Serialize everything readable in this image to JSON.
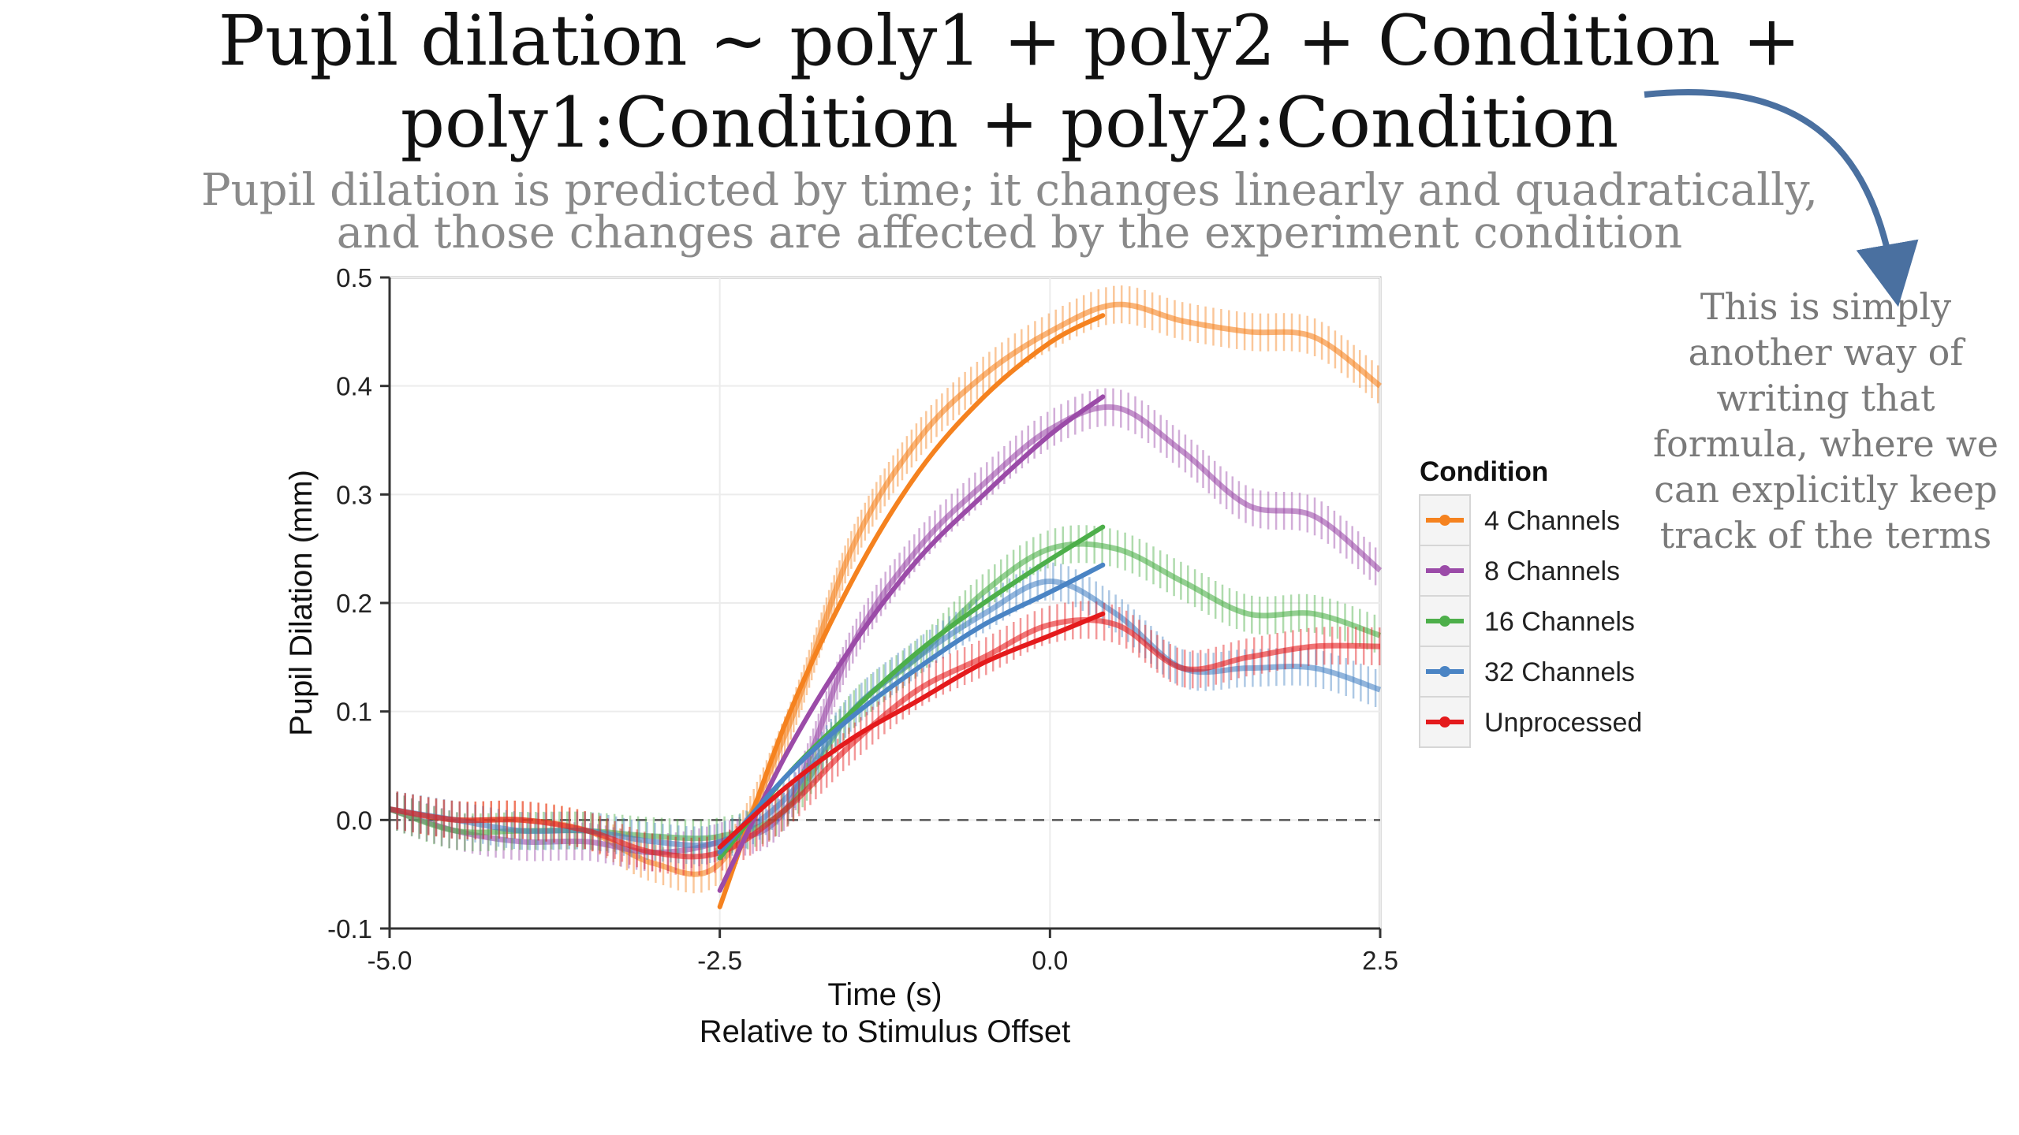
{
  "header": {
    "title_line1": "Pupil dilation ~ poly1 + poly2 + Condition +",
    "title_line2": "poly1:Condition + poly2:Condition",
    "subtitle_line1": "Pupil dilation is predicted by time; it changes linearly and quadratically,",
    "subtitle_line2": "and those changes are affected by the experiment condition"
  },
  "annotation": {
    "lines": [
      "This is simply",
      "another way of",
      "writing that",
      "formula, where we",
      "can explicitly keep",
      "track of the terms"
    ],
    "arrow_color": "#4a70a0"
  },
  "chart_data": {
    "type": "line",
    "xlabel": "Time (s)",
    "xlabel_sub": "Relative to Stimulus Offset",
    "ylabel": "Pupil Dilation (mm)",
    "xlim": [
      -5.0,
      2.5
    ],
    "ylim": [
      -0.1,
      0.5
    ],
    "xticks": [
      -5.0,
      -2.5,
      0.0,
      2.5
    ],
    "xtick_labels": [
      "-5.0",
      "-2.5",
      "0.0",
      "2.5"
    ],
    "yticks": [
      -0.1,
      0.0,
      0.1,
      0.2,
      0.3,
      0.4,
      0.5
    ],
    "ytick_labels": [
      "-0.1",
      "0.0",
      "0.1",
      "0.2",
      "0.3",
      "0.4",
      "0.5"
    ],
    "reference_line": {
      "y": 0.0,
      "style": "dashed"
    },
    "grid": true,
    "legend": {
      "title": "Condition",
      "placement": "right"
    },
    "series": [
      {
        "name": "4 Channels",
        "color": "#f5821f",
        "observed": [
          [
            -5.0,
            0.01
          ],
          [
            -4.5,
            0.0
          ],
          [
            -4.0,
            0.0
          ],
          [
            -3.5,
            -0.01
          ],
          [
            -3.0,
            -0.04
          ],
          [
            -2.5,
            -0.04
          ],
          [
            -2.0,
            0.08
          ],
          [
            -1.5,
            0.25
          ],
          [
            -1.0,
            0.35
          ],
          [
            -0.5,
            0.41
          ],
          [
            0.0,
            0.45
          ],
          [
            0.5,
            0.475
          ],
          [
            1.0,
            0.46
          ],
          [
            1.5,
            0.45
          ],
          [
            2.0,
            0.445
          ],
          [
            2.5,
            0.4
          ]
        ],
        "fit": [
          [
            -2.5,
            -0.08
          ],
          [
            -2.0,
            0.09
          ],
          [
            -1.5,
            0.22
          ],
          [
            -1.0,
            0.32
          ],
          [
            -0.5,
            0.39
          ],
          [
            0.0,
            0.44
          ],
          [
            0.4,
            0.465
          ]
        ]
      },
      {
        "name": "8 Channels",
        "color": "#9b4ba8",
        "observed": [
          [
            -5.0,
            0.01
          ],
          [
            -4.5,
            -0.01
          ],
          [
            -4.0,
            -0.02
          ],
          [
            -3.5,
            -0.02
          ],
          [
            -3.0,
            -0.03
          ],
          [
            -2.5,
            -0.02
          ],
          [
            -2.0,
            0.01
          ],
          [
            -1.5,
            0.16
          ],
          [
            -1.0,
            0.25
          ],
          [
            -0.5,
            0.31
          ],
          [
            0.0,
            0.36
          ],
          [
            0.5,
            0.38
          ],
          [
            1.0,
            0.34
          ],
          [
            1.5,
            0.29
          ],
          [
            2.0,
            0.28
          ],
          [
            2.5,
            0.23
          ]
        ],
        "fit": [
          [
            -2.5,
            -0.065
          ],
          [
            -2.0,
            0.06
          ],
          [
            -1.5,
            0.16
          ],
          [
            -1.0,
            0.24
          ],
          [
            -0.5,
            0.3
          ],
          [
            0.0,
            0.355
          ],
          [
            0.4,
            0.39
          ]
        ]
      },
      {
        "name": "16 Channels",
        "color": "#4daf4a",
        "observed": [
          [
            -5.0,
            0.01
          ],
          [
            -4.5,
            -0.01
          ],
          [
            -4.0,
            -0.01
          ],
          [
            -3.5,
            -0.01
          ],
          [
            -3.0,
            -0.015
          ],
          [
            -2.5,
            -0.015
          ],
          [
            -2.0,
            0.01
          ],
          [
            -1.5,
            0.1
          ],
          [
            -1.0,
            0.15
          ],
          [
            -0.5,
            0.21
          ],
          [
            0.0,
            0.25
          ],
          [
            0.5,
            0.25
          ],
          [
            1.0,
            0.22
          ],
          [
            1.5,
            0.19
          ],
          [
            2.0,
            0.19
          ],
          [
            2.5,
            0.17
          ]
        ],
        "fit": [
          [
            -2.5,
            -0.035
          ],
          [
            -2.0,
            0.04
          ],
          [
            -1.5,
            0.1
          ],
          [
            -1.0,
            0.155
          ],
          [
            -0.5,
            0.2
          ],
          [
            0.0,
            0.24
          ],
          [
            0.4,
            0.27
          ]
        ]
      },
      {
        "name": "32 Channels",
        "color": "#4a84c4",
        "observed": [
          [
            -5.0,
            0.01
          ],
          [
            -4.5,
            0.0
          ],
          [
            -4.0,
            -0.01
          ],
          [
            -3.5,
            -0.01
          ],
          [
            -3.0,
            -0.02
          ],
          [
            -2.5,
            -0.02
          ],
          [
            -2.0,
            0.02
          ],
          [
            -1.5,
            0.1
          ],
          [
            -1.0,
            0.15
          ],
          [
            -0.5,
            0.19
          ],
          [
            0.0,
            0.22
          ],
          [
            0.5,
            0.19
          ],
          [
            1.0,
            0.14
          ],
          [
            1.5,
            0.14
          ],
          [
            2.0,
            0.14
          ],
          [
            2.5,
            0.12
          ]
        ],
        "fit": [
          [
            -2.5,
            -0.03
          ],
          [
            -2.0,
            0.04
          ],
          [
            -1.5,
            0.095
          ],
          [
            -1.0,
            0.14
          ],
          [
            -0.5,
            0.18
          ],
          [
            0.0,
            0.21
          ],
          [
            0.4,
            0.235
          ]
        ]
      },
      {
        "name": "Unprocessed",
        "color": "#e41a1c",
        "observed": [
          [
            -5.0,
            0.01
          ],
          [
            -4.5,
            0.0
          ],
          [
            -4.0,
            0.0
          ],
          [
            -3.5,
            -0.01
          ],
          [
            -3.0,
            -0.03
          ],
          [
            -2.5,
            -0.03
          ],
          [
            -2.0,
            0.01
          ],
          [
            -1.5,
            0.07
          ],
          [
            -1.0,
            0.12
          ],
          [
            -0.5,
            0.15
          ],
          [
            0.0,
            0.18
          ],
          [
            0.5,
            0.18
          ],
          [
            1.0,
            0.14
          ],
          [
            1.5,
            0.15
          ],
          [
            2.0,
            0.16
          ],
          [
            2.5,
            0.16
          ]
        ],
        "fit": [
          [
            -2.5,
            -0.025
          ],
          [
            -2.0,
            0.03
          ],
          [
            -1.5,
            0.075
          ],
          [
            -1.0,
            0.11
          ],
          [
            -0.5,
            0.145
          ],
          [
            0.0,
            0.17
          ],
          [
            0.4,
            0.19
          ]
        ]
      }
    ]
  }
}
